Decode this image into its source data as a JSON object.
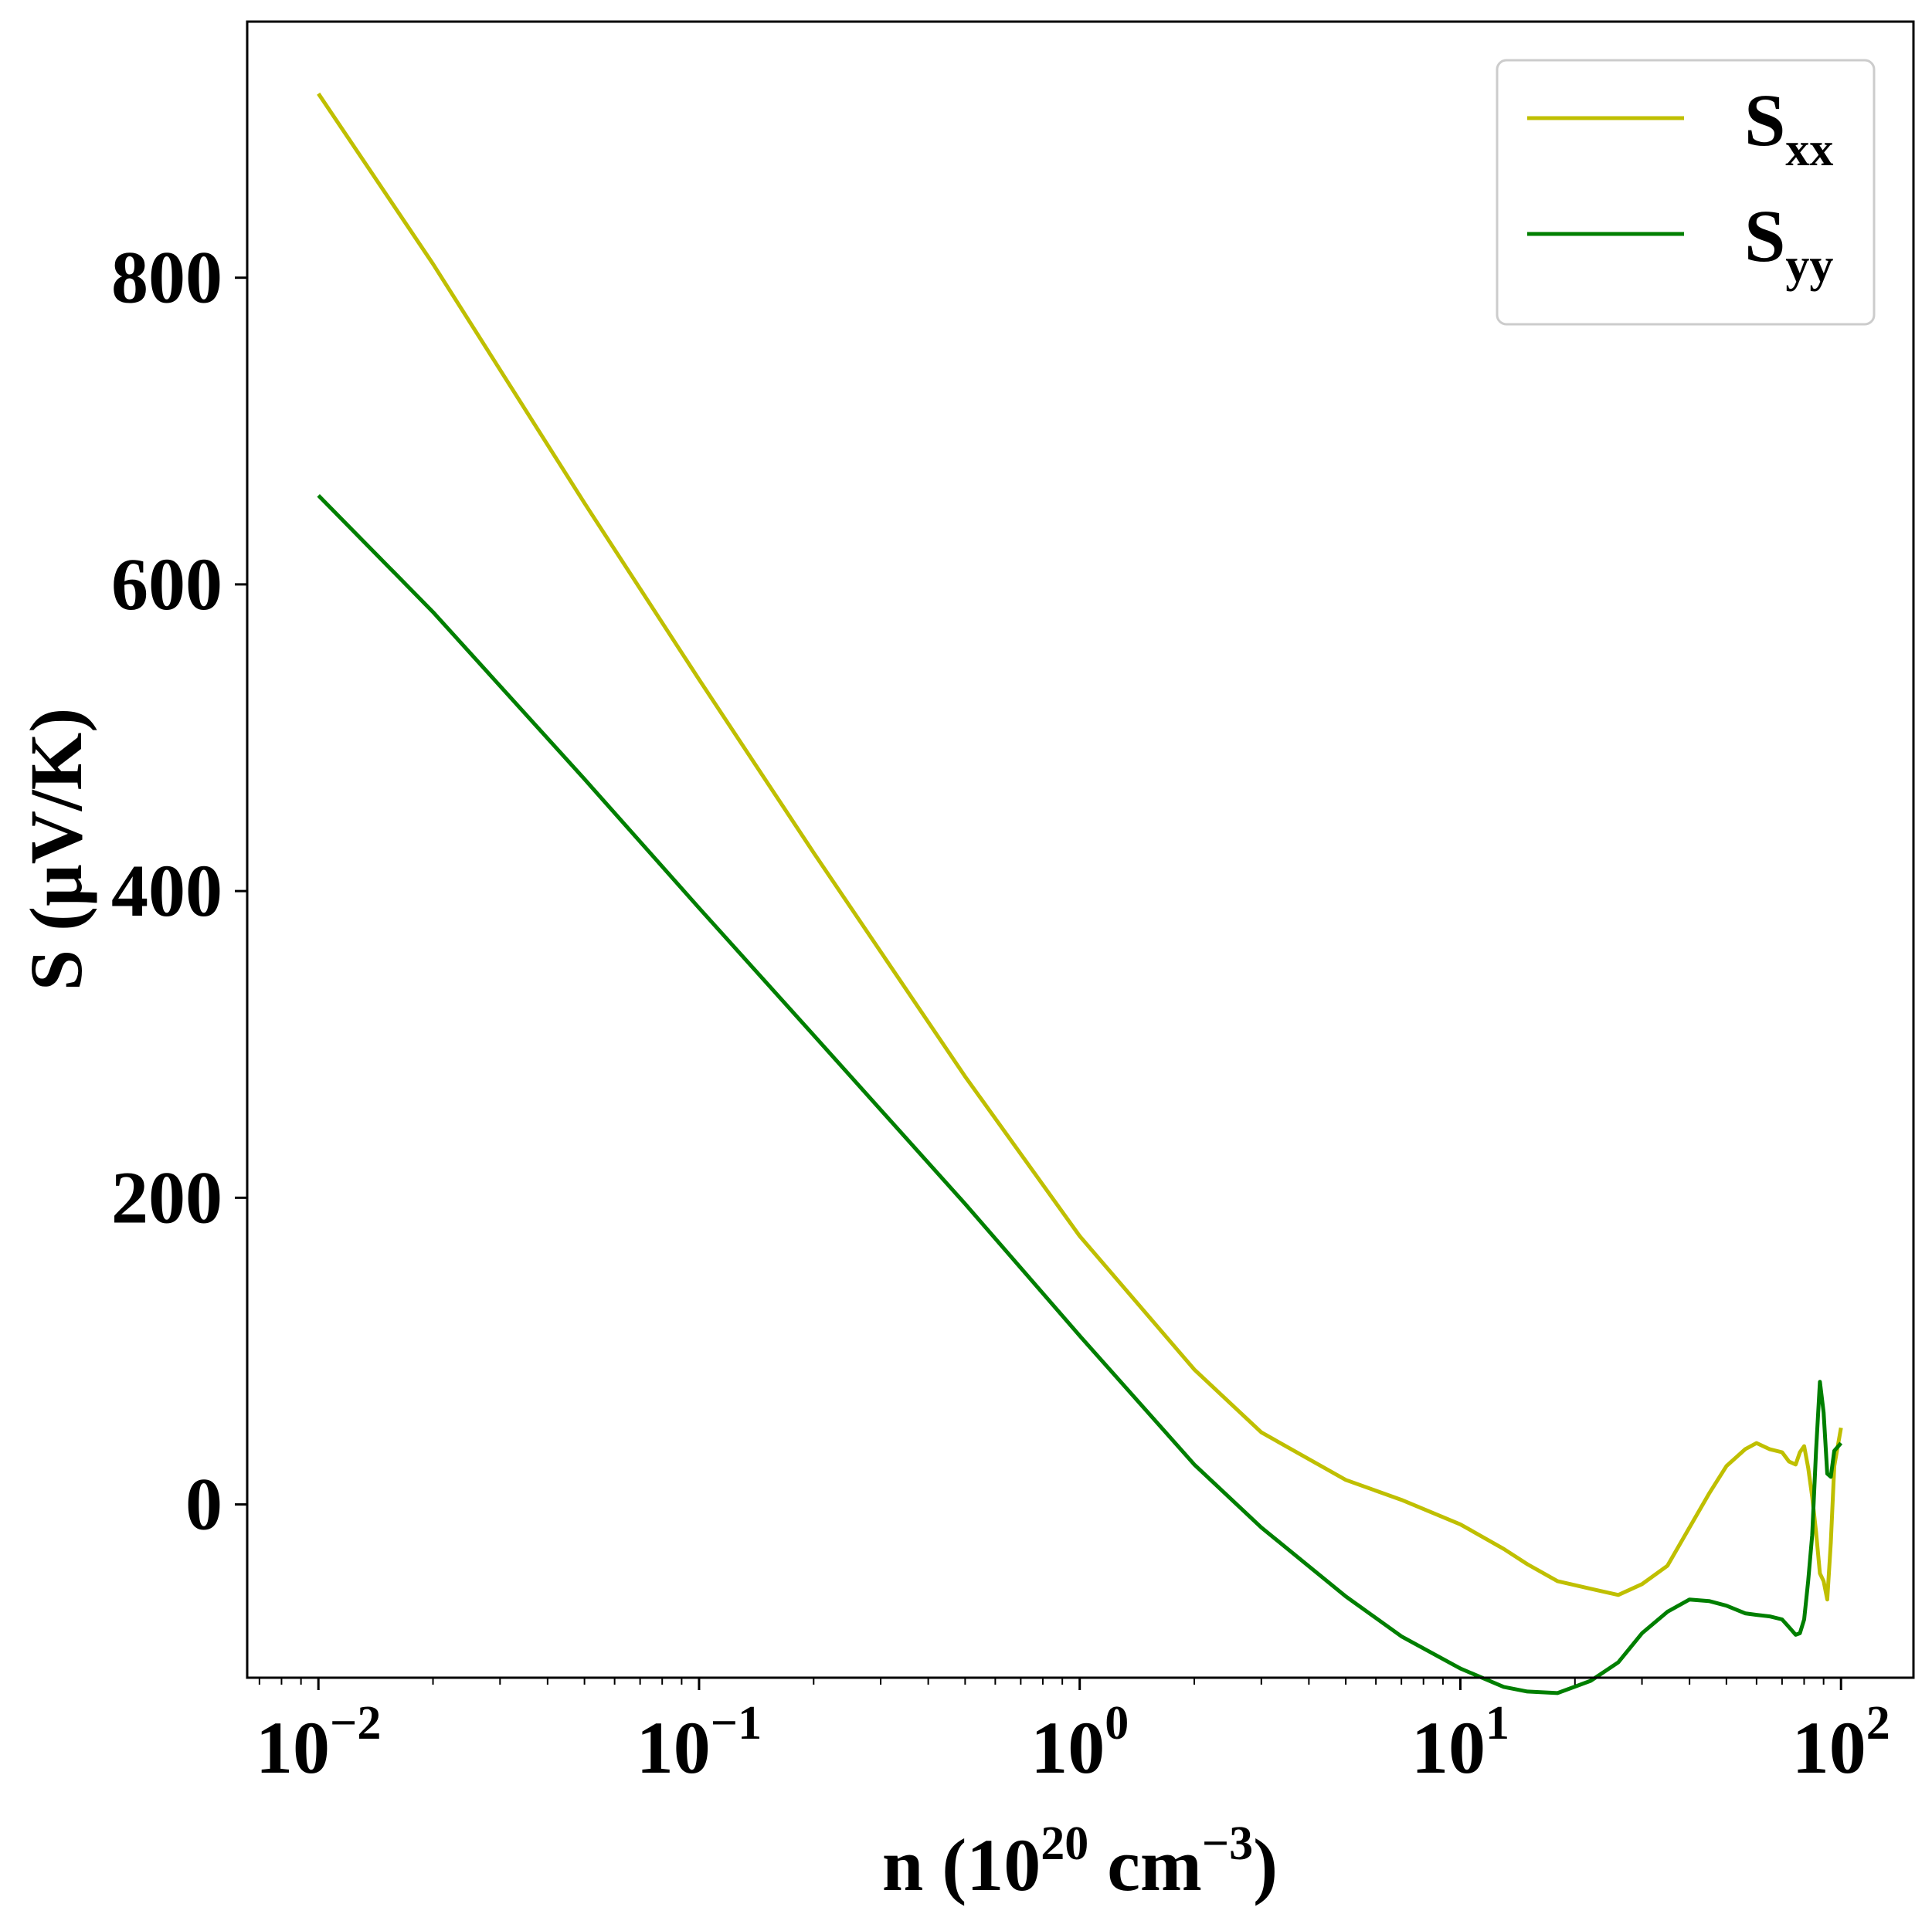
{
  "chart_data": {
    "type": "line",
    "title": "",
    "xscale": "log",
    "xlim": [
      0.0065,
      155
    ],
    "ylim": [
      -113,
      967
    ],
    "grid": false,
    "legend_position": "top-right",
    "xlabel": {
      "base": "n (10",
      "sup1": "20",
      "mid": " cm",
      "sup2": "−3",
      "end": ")"
    },
    "ylabel": "S (μV/K)",
    "xticks": [
      {
        "value": 0.01,
        "base": "10",
        "exp": "−2"
      },
      {
        "value": 0.1,
        "base": "10",
        "exp": "−1"
      },
      {
        "value": 1,
        "base": "10",
        "exp": "0"
      },
      {
        "value": 10,
        "base": "10",
        "exp": "1"
      },
      {
        "value": 100,
        "base": "10",
        "exp": "2"
      }
    ],
    "yticks": [
      {
        "value": 0,
        "label": "0"
      },
      {
        "value": 200,
        "label": "200"
      },
      {
        "value": 400,
        "label": "400"
      },
      {
        "value": 600,
        "label": "600"
      },
      {
        "value": 800,
        "label": "800"
      }
    ],
    "series": [
      {
        "name": "Sxx",
        "label_main": "S",
        "label_sub": "xx",
        "color": "#bfbf00",
        "x": [
          0.01,
          0.02,
          0.05,
          0.1,
          0.2,
          0.5,
          1,
          2,
          3,
          5,
          7,
          10,
          13,
          15,
          18,
          22,
          26,
          30,
          35,
          40,
          45,
          50,
          56,
          60,
          65,
          70,
          73,
          76,
          78,
          80,
          82,
          84,
          86,
          88,
          90,
          92,
          94,
          96,
          100
        ],
        "y": [
          920,
          809,
          653,
          538,
          425,
          279,
          175,
          88,
          47,
          16,
          3,
          -13,
          -29,
          -39,
          -50,
          -55,
          -59,
          -52,
          -40,
          -15,
          7,
          25,
          36,
          40,
          36,
          34,
          28,
          26,
          34,
          38,
          24,
          5,
          -18,
          -45,
          -50,
          -62,
          -25,
          25,
          50
        ]
      },
      {
        "name": "Syy",
        "label_main": "S",
        "label_sub": "yy",
        "color": "#007f00",
        "x": [
          0.01,
          0.02,
          0.05,
          0.1,
          0.2,
          0.5,
          1,
          2,
          3,
          5,
          7,
          10,
          13,
          15,
          18,
          22,
          26,
          30,
          35,
          40,
          45,
          50,
          56,
          60,
          65,
          70,
          73,
          76,
          78,
          80,
          82,
          84,
          86,
          88,
          90,
          92,
          94,
          96,
          100
        ],
        "y": [
          658,
          582,
          473,
          389,
          306,
          196,
          110,
          26,
          -15,
          -60,
          -86,
          -107,
          -119,
          -122,
          -123,
          -115,
          -103,
          -84,
          -70,
          -62,
          -63,
          -66,
          -71,
          -72,
          -73,
          -75,
          -80,
          -85,
          -84,
          -75,
          -50,
          -20,
          35,
          80,
          60,
          20,
          18,
          35,
          40
        ]
      }
    ]
  }
}
